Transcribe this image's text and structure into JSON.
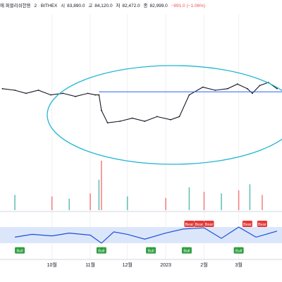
{
  "header": {
    "title": "에 퍼블리쉬한용",
    "exchange": "2 · BITHEX",
    "open_label": "시",
    "open": "83,890.0",
    "high_label": "고",
    "high": "84,120.0",
    "low_label": "저",
    "low": "82,472.0",
    "close_label": "종",
    "close": "82,999.0",
    "change": "−891.0 (−1.06%)"
  },
  "colors": {
    "price": "#131722",
    "ellipse": "#22b5d3",
    "hline": "#2962ff",
    "vol_up": "#26a69a",
    "vol_down": "#ef5350",
    "osc": "#1e4fd8",
    "band": "#dbe6fb",
    "bear": "#e53935",
    "bull": "#2e9d3f",
    "grid": "#eef0f3",
    "axis_text": "#131722"
  },
  "chart_data": [
    {
      "type": "line",
      "panel": "price",
      "series": [
        {
          "x": [
            "2022-08-22",
            "2022-09-01",
            "2022-09-10",
            "2022-09-20",
            "2022-09-30",
            "2022-10-10",
            "2022-10-20",
            "2022-10-30",
            "2022-11-05",
            "2022-11-08",
            "2022-11-10",
            "2022-11-15",
            "2022-11-25",
            "2022-12-05",
            "2022-12-15",
            "2022-12-25",
            "2023-01-05",
            "2023-01-12",
            "2023-01-20",
            "2023-01-31",
            "2023-02-10",
            "2023-02-20",
            "2023-02-28",
            "2023-03-08",
            "2023-03-12",
            "2023-03-18",
            "2023-03-25",
            "2023-04-01"
          ],
          "values": [
            61,
            60,
            58,
            60,
            57,
            58,
            56,
            58,
            57,
            57,
            47,
            39,
            40,
            42,
            40,
            43,
            41,
            43,
            57,
            62,
            60,
            61,
            64,
            61,
            58,
            63,
            65,
            61
          ]
        }
      ],
      "annotations": {
        "horizontal_line": 59,
        "ellipse_drawing": true
      }
    },
    {
      "type": "bar",
      "panel": "volume",
      "series": [
        {
          "x": [
            "2022-09-01",
            "2022-10-01",
            "2022-10-15",
            "2022-11-01",
            "2022-11-08",
            "2022-11-10",
            "2022-12-01",
            "2023-01-01",
            "2023-01-20",
            "2023-02-01",
            "2023-02-15",
            "2023-03-01",
            "2023-03-10",
            "2023-03-20"
          ],
          "values": [
            20,
            18,
            15,
            22,
            40,
            65,
            18,
            16,
            30,
            24,
            22,
            26,
            34,
            20
          ]
        }
      ]
    },
    {
      "type": "line",
      "panel": "oscillator",
      "series": [
        {
          "x": [
            "2022-09-01",
            "2022-09-15",
            "2022-10-01",
            "2022-10-15",
            "2022-11-01",
            "2022-11-10",
            "2022-11-20",
            "2022-12-01",
            "2022-12-15",
            "2023-01-01",
            "2023-01-15",
            "2023-02-01",
            "2023-02-15",
            "2023-03-01",
            "2023-03-15",
            "2023-04-01"
          ],
          "values": [
            45,
            52,
            48,
            55,
            50,
            30,
            58,
            52,
            40,
            55,
            65,
            68,
            42,
            70,
            45,
            60
          ]
        }
      ],
      "signals": [
        {
          "label": "Bull",
          "x": "2022-09-05"
        },
        {
          "label": "Bull",
          "x": "2022-11-10"
        },
        {
          "label": "Bull",
          "x": "2022-12-20"
        },
        {
          "label": "Bull",
          "x": "2023-01-18"
        },
        {
          "label": "Bull",
          "x": "2023-03-01"
        },
        {
          "label": "Bear",
          "x": "2023-01-20"
        },
        {
          "label": "Bear",
          "x": "2023-01-28"
        },
        {
          "label": "Bear",
          "x": "2023-02-05"
        },
        {
          "label": "Bear",
          "x": "2023-03-08"
        },
        {
          "label": "Bear",
          "x": "2023-03-20"
        }
      ]
    }
  ],
  "xaxis": {
    "ticks": [
      {
        "label": "10월",
        "date": "2022-10-01"
      },
      {
        "label": "11월",
        "date": "2022-11-01"
      },
      {
        "label": "12월",
        "date": "2022-12-01"
      },
      {
        "label": "2023",
        "date": "2023-01-01"
      },
      {
        "label": "2월",
        "date": "2023-02-01"
      },
      {
        "label": "3월",
        "date": "2023-03-01"
      }
    ]
  }
}
